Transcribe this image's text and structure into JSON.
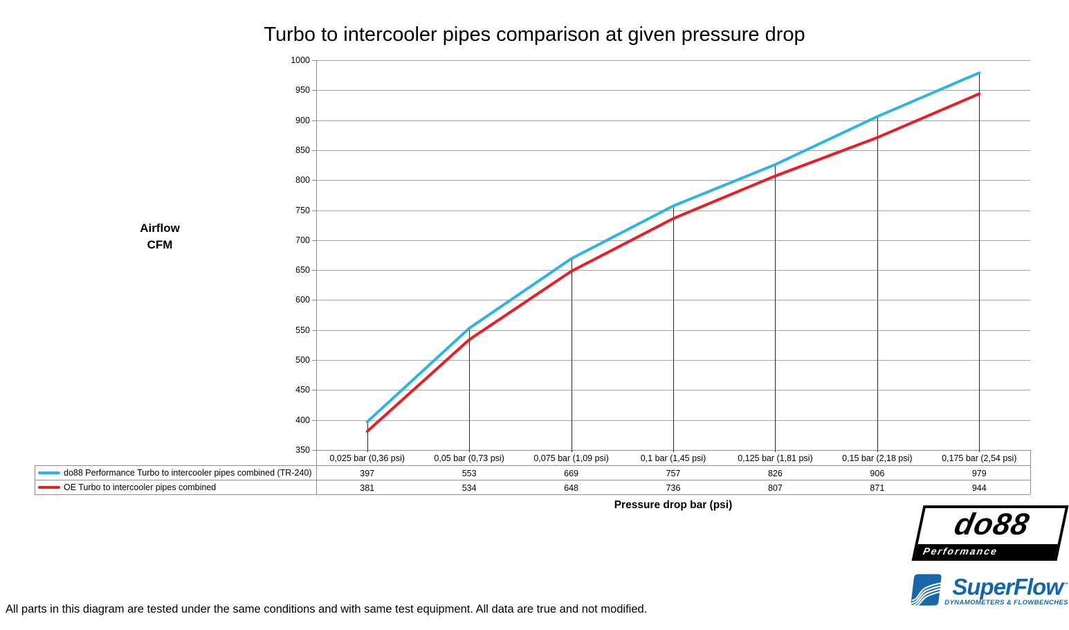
{
  "title": "Turbo to intercooler pipes comparison at given pressure drop",
  "footnote": "All parts in this diagram are tested under the same conditions and with same test equipment. All data are true and not modified.",
  "chart_data": {
    "type": "line",
    "title": "Turbo to intercooler pipes comparison at given pressure drop",
    "categories": [
      "0,025 bar (0,36 psi)",
      "0,05 bar (0,73 psi)",
      "0,075 bar (1,09 psi)",
      "0,1 bar (1,45 psi)",
      "0,125 bar (1,81 psi)",
      "0,15 bar (2,18 psi)",
      "0,175 bar (2,54 psi)"
    ],
    "series": [
      {
        "name": "do88 Performance Turbo to intercooler pipes combined (TR-240)",
        "color": "#2fb2e6",
        "values": [
          397,
          553,
          669,
          757,
          826,
          906,
          979
        ]
      },
      {
        "name": "OE Turbo to intercooler pipes combined",
        "color": "#ec1c24",
        "values": [
          381,
          534,
          648,
          736,
          807,
          871,
          944
        ]
      }
    ],
    "ylabel_lines": [
      "Airflow",
      "CFM"
    ],
    "xlabel": "Pressure drop bar (psi)",
    "ylim": [
      350,
      1000
    ],
    "y_tick_step": 50,
    "grid": true,
    "drop_lines": true,
    "legend_position": "table rows left of value grid"
  },
  "colors": {
    "series_blue": "#2fb2e6",
    "series_red": "#ec1c24",
    "gridline": "#a6a6a6",
    "axis": "#8c8c8c",
    "drop_line": "#262626",
    "table_border": "#8c8c8c",
    "text": "#000000",
    "superflow_blue": "#1565a9",
    "do88_black": "#000000"
  },
  "logos": {
    "do88": {
      "name": "do88",
      "tagline": "Performance"
    },
    "superflow": {
      "name": "SuperFlow",
      "trademark": "™",
      "tagline": "DYNAMOMETERS & FLOWBENCHES"
    }
  }
}
